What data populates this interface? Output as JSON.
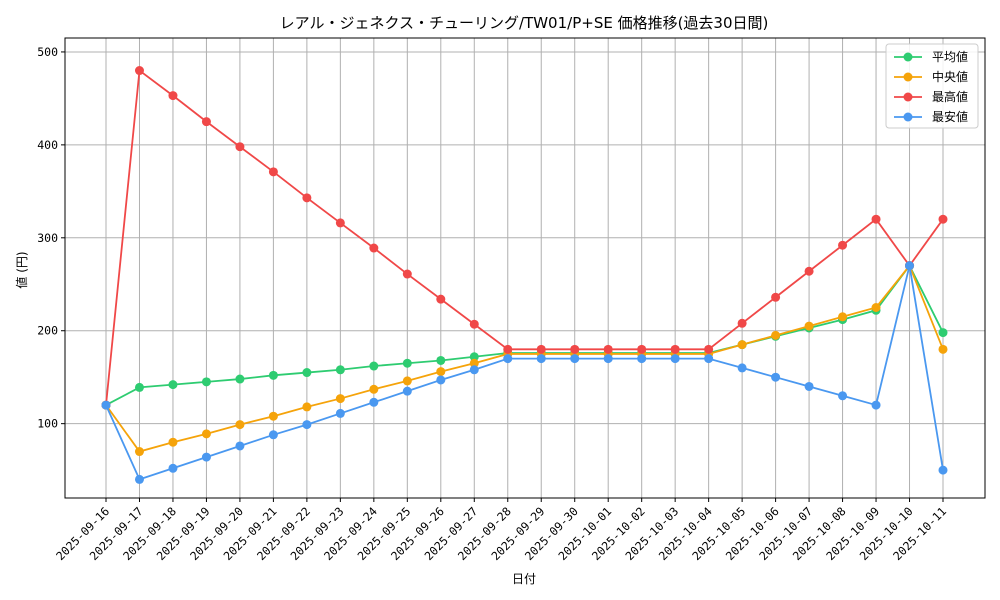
{
  "chart_data": {
    "type": "line",
    "title": "レアル・ジェネクス・チューリング/TW01/P+SE 価格推移(過去30日間)",
    "xlabel": "日付",
    "ylabel": "値 (円)",
    "ylim": [
      20,
      515
    ],
    "yticks": [
      100,
      200,
      300,
      400,
      500
    ],
    "grid": true,
    "legend_position": "top-right",
    "categories": [
      "2025-09-16",
      "2025-09-17",
      "2025-09-18",
      "2025-09-19",
      "2025-09-20",
      "2025-09-21",
      "2025-09-22",
      "2025-09-23",
      "2025-09-24",
      "2025-09-25",
      "2025-09-26",
      "2025-09-27",
      "2025-09-28",
      "2025-09-29",
      "2025-09-30",
      "2025-10-01",
      "2025-10-02",
      "2025-10-03",
      "2025-10-04",
      "2025-10-05",
      "2025-10-06",
      "2025-10-07",
      "2025-10-08",
      "2025-10-09",
      "2025-10-10",
      "2025-10-11"
    ],
    "series": [
      {
        "name": "平均値",
        "color": "#2ecc71",
        "values": [
          120,
          139,
          142,
          145,
          148,
          152,
          155,
          158,
          162,
          165,
          168,
          172,
          176,
          176,
          176,
          176,
          176,
          176,
          176,
          185,
          194,
          203,
          212,
          222,
          270,
          198
        ]
      },
      {
        "name": "中央値",
        "color": "#f5a30a",
        "values": [
          120,
          70,
          80,
          89,
          99,
          108,
          118,
          127,
          137,
          146,
          156,
          165,
          175,
          175,
          175,
          175,
          175,
          175,
          175,
          185,
          195,
          205,
          215,
          225,
          270,
          180
        ]
      },
      {
        "name": "最高値",
        "color": "#f04848",
        "values": [
          120,
          480,
          453,
          425,
          398,
          371,
          343,
          316,
          289,
          261,
          234,
          207,
          180,
          180,
          180,
          180,
          180,
          180,
          180,
          208,
          236,
          264,
          292,
          320,
          270,
          320
        ]
      },
      {
        "name": "最安値",
        "color": "#4a98f0",
        "values": [
          120,
          40,
          52,
          64,
          76,
          88,
          99,
          111,
          123,
          135,
          147,
          158,
          170,
          170,
          170,
          170,
          170,
          170,
          170,
          160,
          150,
          140,
          130,
          120,
          270,
          50
        ]
      }
    ]
  }
}
